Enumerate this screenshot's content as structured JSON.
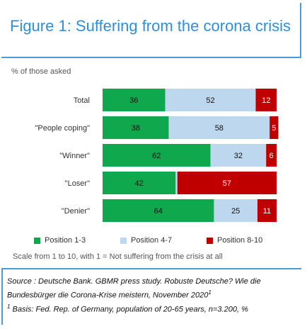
{
  "title": "Figure 1: Suffering from the corona crisis",
  "ylabel": "% of those  asked",
  "note": "Scale from 1 to 10, with 1 = Not suffering from the crisis at all",
  "source": {
    "line1": "Source : Deutsche Bank. GBMR press study. Robuste Deutsche? Wie die",
    "line2": "Bundesbürger die Corona-Krise meistern, November 2020",
    "line2_sup": "1",
    "footnote_sup": "1",
    "footnote": " Basis: Fed. Rep. of Germany, population of 20-65 years, n=3.200, %"
  },
  "chart_data": {
    "type": "bar",
    "orientation": "horizontal",
    "stacked": true,
    "categories": [
      "Total",
      "\"People coping\"",
      "\"Winner\"",
      "\"Loser\"",
      "\"Denier\""
    ],
    "series": [
      {
        "name": "Position 1-3",
        "color": "#10a84c",
        "values": [
          36,
          38,
          62,
          42,
          64
        ]
      },
      {
        "name": "Position 4-7",
        "color": "#bdd7ee",
        "values": [
          52,
          58,
          32,
          1,
          25
        ]
      },
      {
        "name": "Position 8-10",
        "color": "#c00000",
        "values": [
          12,
          5,
          6,
          57,
          11
        ]
      }
    ],
    "data_labels": [
      [
        "36",
        "52",
        "12"
      ],
      [
        "38",
        "58",
        "5"
      ],
      [
        "62",
        "32",
        "6"
      ],
      [
        "42",
        "",
        "57"
      ],
      [
        "64",
        "25",
        "11"
      ]
    ],
    "xlim": [
      0,
      100
    ],
    "grid": false,
    "legend": "bottom"
  }
}
